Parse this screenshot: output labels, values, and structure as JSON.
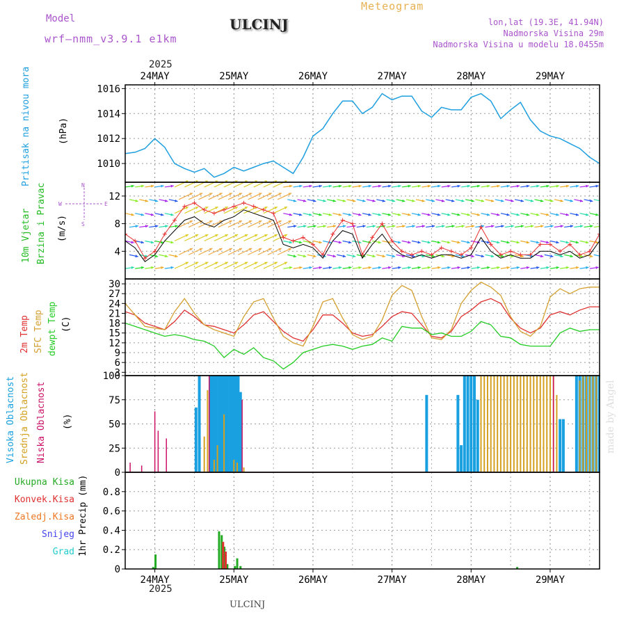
{
  "header": {
    "model_label": "Model",
    "model_name": "wrf—nmm_v3.9.1  e1km",
    "station": "ULCINJ",
    "meteogram": "Meteogram",
    "lonlat": "lon,lat (19.3E, 41.94N)",
    "elevation": "Nadmorska Visina 29m",
    "model_elevation": "Nadmorska Visina u modelu 18.0455m",
    "year": "2025",
    "footer_station": "ULCINJ",
    "credit": "made by Angel"
  },
  "colors": {
    "pressure": "#1e9fe0",
    "wind_label": "#22bb22",
    "wind_speed_line": "#000000",
    "wind_gust": "#e83030",
    "temp_2m": "#e03030",
    "sfc_temp": "#d4a030",
    "dewpt": "#22cc22",
    "cloud_high": "#18a0e0",
    "cloud_mid": "#d4a020",
    "cloud_low": "#cc1166",
    "precip_total": "#22aa22",
    "precip_conv": "#e03030",
    "precip_frz": "#ee7722",
    "snow": "#4444ee",
    "hail": "#22cccc",
    "title": "#222222",
    "purple": "#aa55cc",
    "orange": "#e8b050"
  },
  "days": [
    "24MAY",
    "25MAY",
    "26MAY",
    "27MAY",
    "28MAY",
    "29MAY"
  ],
  "axes_labels": {
    "pressure": [
      "Pritisak na nivou mora",
      "(hPa)"
    ],
    "wind": [
      "10m Vjetar",
      "Brzina i Pravac",
      "(m/s)"
    ],
    "wind_compass": {
      "n": "N",
      "s": "S",
      "w": "W",
      "e": "E"
    },
    "temp": [
      "2m Temp",
      "SFC Temp",
      "dewpt Temp",
      "(C)"
    ],
    "cloud": [
      "Visoka Oblacnost",
      "Srednja Oblacnost",
      "Niska Oblacnost",
      "(%)"
    ],
    "precip_legend": [
      "Ukupna Kisa",
      "Konvek.Kisa",
      "Zaledj.Kisa",
      "Snijeg",
      "Grad"
    ],
    "precip": "1hr Precip (mm)"
  },
  "chart_data": [
    {
      "type": "line",
      "name": "pressure",
      "ylabel": "Pritisak na nivou mora (hPa)",
      "ylim": [
        1008.5,
        1016.3
      ],
      "yticks": [
        1010,
        1012,
        1014,
        1016
      ],
      "x_hours": [
        0,
        3,
        6,
        9,
        12,
        15,
        18,
        21,
        24,
        27,
        30,
        33,
        36,
        39,
        42,
        45,
        48,
        51,
        54,
        57,
        60,
        63,
        66,
        69,
        72,
        75,
        78,
        81,
        84,
        87,
        90,
        93,
        96,
        99,
        102,
        105,
        108,
        111,
        114,
        117,
        120,
        123,
        126,
        129,
        132,
        135,
        138,
        141,
        144
      ],
      "values": [
        1010.8,
        1010.9,
        1011.2,
        1012.0,
        1011.3,
        1010.0,
        1009.6,
        1009.3,
        1009.6,
        1008.9,
        1009.2,
        1009.7,
        1009.4,
        1009.7,
        1010.0,
        1010.2,
        1009.7,
        1009.2,
        1010.5,
        1012.2,
        1012.8,
        1014.0,
        1015.0,
        1015.0,
        1014.0,
        1014.5,
        1015.6,
        1015.1,
        1015.4,
        1015.4,
        1014.2,
        1013.7,
        1014.5,
        1014.3,
        1014.3,
        1015.3,
        1015.6,
        1015.0,
        1013.6,
        1014.3,
        1014.9,
        1013.5,
        1012.6,
        1012.2,
        1012.0,
        1011.6,
        1011.2,
        1010.5,
        1010.0
      ]
    },
    {
      "type": "line",
      "name": "wind",
      "ylabel": "10m Vjetar Brzina i Pravac (m/s)",
      "ylim": [
        0,
        14
      ],
      "yticks": [
        4,
        8,
        12
      ],
      "x_hours": [
        0,
        3,
        6,
        9,
        12,
        15,
        18,
        21,
        24,
        27,
        30,
        33,
        36,
        39,
        42,
        45,
        48,
        51,
        54,
        57,
        60,
        63,
        66,
        69,
        72,
        75,
        78,
        81,
        84,
        87,
        90,
        93,
        96,
        99,
        102,
        105,
        108,
        111,
        114,
        117,
        120,
        123,
        126,
        129,
        132,
        135,
        138,
        141,
        144
      ],
      "speed": [
        5.5,
        4.5,
        2.5,
        3.5,
        5.5,
        7.0,
        8.5,
        9.0,
        8.0,
        7.5,
        8.5,
        9.0,
        10.0,
        9.5,
        9.0,
        8.5,
        5.0,
        4.5,
        5.0,
        4.5,
        3.0,
        5.5,
        7.0,
        6.5,
        3.0,
        5.0,
        6.5,
        4.5,
        3.5,
        3.0,
        3.5,
        3.0,
        3.5,
        3.5,
        3.0,
        3.5,
        6.0,
        4.0,
        3.0,
        3.5,
        3.0,
        3.0,
        4.0,
        4.0,
        3.5,
        4.0,
        3.0,
        3.5,
        5.5
      ],
      "gust": [
        6.5,
        5.5,
        3.0,
        4.0,
        6.5,
        8.5,
        10.5,
        11.0,
        10.0,
        9.5,
        10.0,
        10.5,
        11.0,
        10.5,
        10.0,
        9.5,
        6.0,
        5.5,
        6.0,
        5.0,
        3.5,
        6.5,
        8.5,
        8.0,
        3.5,
        6.0,
        8.0,
        5.5,
        4.0,
        3.5,
        4.0,
        3.5,
        4.5,
        4.0,
        3.5,
        4.5,
        7.5,
        5.0,
        3.5,
        4.0,
        3.5,
        3.5,
        5.0,
        5.0,
        4.0,
        5.0,
        3.5,
        4.0,
        6.5
      ]
    },
    {
      "type": "line",
      "name": "temperature",
      "ylabel": "(C)",
      "ylim": [
        2,
        31.5
      ],
      "yticks": [
        3,
        6,
        9,
        12,
        15,
        18,
        21,
        24,
        27,
        30
      ],
      "x_hours": [
        0,
        3,
        6,
        9,
        12,
        15,
        18,
        21,
        24,
        27,
        30,
        33,
        36,
        39,
        42,
        45,
        48,
        51,
        54,
        57,
        60,
        63,
        66,
        69,
        72,
        75,
        78,
        81,
        84,
        87,
        90,
        93,
        96,
        99,
        102,
        105,
        108,
        111,
        114,
        117,
        120,
        123,
        126,
        129,
        132,
        135,
        138,
        141,
        144
      ],
      "series": [
        {
          "name": "2m Temp",
          "values": [
            21.5,
            20.5,
            18.0,
            17.0,
            16.0,
            18.5,
            22.0,
            20.0,
            17.5,
            17.0,
            16.0,
            15.0,
            17.5,
            20.5,
            21.5,
            18.5,
            15.5,
            13.5,
            12.5,
            16.0,
            20.5,
            20.5,
            18.0,
            15.0,
            14.0,
            14.5,
            17.0,
            20.0,
            21.5,
            21.0,
            17.5,
            14.0,
            13.5,
            15.5,
            20.0,
            22.0,
            24.5,
            25.5,
            24.0,
            19.5,
            16.5,
            15.0,
            16.5,
            20.5,
            21.5,
            20.5,
            22.0,
            23.0,
            23.0
          ]
        },
        {
          "name": "SFC Temp",
          "values": [
            24.0,
            20.5,
            17.0,
            16.5,
            16.0,
            21.5,
            25.5,
            21.0,
            17.5,
            16.0,
            15.0,
            14.0,
            20.0,
            24.5,
            25.5,
            19.5,
            14.0,
            12.0,
            11.0,
            17.0,
            24.5,
            25.5,
            19.5,
            14.5,
            13.0,
            14.0,
            19.0,
            26.5,
            29.5,
            28.0,
            20.0,
            13.5,
            13.0,
            16.0,
            24.0,
            28.0,
            30.5,
            29.0,
            26.5,
            20.0,
            15.5,
            14.0,
            17.0,
            26.0,
            28.5,
            27.0,
            28.5,
            29.0,
            29.0
          ]
        },
        {
          "name": "dewpt Temp",
          "values": [
            18.0,
            17.0,
            16.0,
            15.0,
            14.0,
            14.5,
            14.0,
            13.0,
            12.5,
            11.0,
            7.5,
            10.0,
            8.5,
            10.5,
            7.5,
            6.5,
            4.0,
            6.0,
            9.0,
            10.0,
            11.0,
            11.5,
            11.0,
            10.0,
            11.0,
            11.5,
            13.5,
            12.5,
            17.0,
            16.5,
            16.5,
            14.5,
            15.0,
            14.0,
            14.0,
            15.5,
            18.5,
            17.5,
            14.0,
            13.5,
            11.5,
            11.0,
            11.0,
            11.0,
            15.0,
            16.5,
            15.5,
            16.0,
            16.0
          ]
        }
      ]
    },
    {
      "type": "bar",
      "name": "cloud",
      "ylabel": "(%)",
      "ylim": [
        0,
        100
      ],
      "yticks": [
        0,
        25,
        50,
        75,
        100
      ],
      "series": [
        {
          "name": "Visoka Oblacnost",
          "bars": [
            [
              21.5,
              67
            ],
            [
              22.5,
              100
            ],
            [
              26,
              100
            ],
            [
              26.8,
              100
            ],
            [
              27.5,
              100
            ],
            [
              28.3,
              100
            ],
            [
              29,
              100
            ],
            [
              29.7,
              100
            ],
            [
              30.5,
              100
            ],
            [
              31.2,
              100
            ],
            [
              32,
              100
            ],
            [
              32.8,
              100
            ],
            [
              33.5,
              100
            ],
            [
              34.3,
              100
            ],
            [
              35,
              83
            ],
            [
              91.5,
              80
            ],
            [
              101,
              80
            ],
            [
              102,
              28
            ],
            [
              103,
              100
            ],
            [
              104,
              100
            ],
            [
              105,
              100
            ],
            [
              106,
              100
            ],
            [
              107,
              75
            ],
            [
              132,
              55
            ],
            [
              133,
              55
            ],
            [
              137,
              100
            ],
            [
              138,
              100
            ],
            [
              139,
              100
            ],
            [
              140,
              100
            ],
            [
              141,
              100
            ],
            [
              142,
              100
            ],
            [
              143,
              100
            ],
            [
              144,
              100
            ]
          ]
        },
        {
          "name": "Srednja Oblacnost",
          "bars": [
            [
              24,
              37
            ],
            [
              25,
              85
            ],
            [
              27,
              13
            ],
            [
              28,
              28
            ],
            [
              30,
              60
            ],
            [
              33,
              13
            ],
            [
              34,
              10
            ],
            [
              36,
              5
            ],
            [
              108,
              100
            ],
            [
              109,
              100
            ],
            [
              110,
              100
            ],
            [
              111,
              100
            ],
            [
              112,
              100
            ],
            [
              113,
              100
            ],
            [
              114,
              100
            ],
            [
              115,
              100
            ],
            [
              116,
              100
            ],
            [
              117,
              100
            ],
            [
              118,
              100
            ],
            [
              119,
              100
            ],
            [
              120,
              100
            ],
            [
              121,
              100
            ],
            [
              122,
              100
            ],
            [
              123,
              100
            ],
            [
              124,
              100
            ],
            [
              125,
              100
            ],
            [
              126,
              100
            ],
            [
              127,
              100
            ],
            [
              128,
              100
            ],
            [
              129,
              100
            ],
            [
              130,
              100
            ],
            [
              131,
              80
            ],
            [
              138,
              95
            ],
            [
              139,
              100
            ],
            [
              140,
              100
            ],
            [
              141,
              100
            ],
            [
              142,
              100
            ],
            [
              143,
              100
            ]
          ]
        },
        {
          "name": "Niska Oblacnost",
          "bars": [
            [
              1.5,
              10
            ],
            [
              5,
              7
            ],
            [
              9,
              63
            ],
            [
              10,
              43
            ],
            [
              12.5,
              35
            ],
            [
              25.5,
              100
            ],
            [
              35.5,
              75
            ],
            [
              130,
              100
            ]
          ]
        }
      ]
    },
    {
      "type": "bar",
      "name": "precipitation",
      "ylabel": "1hr Precip (mm)",
      "ylim": [
        0,
        1
      ],
      "yticks": [
        0,
        0.2,
        0.4,
        0.6,
        0.8
      ],
      "series": [
        {
          "name": "Ukupna Kisa",
          "bars": [
            [
              8.5,
              0.02
            ],
            [
              9.2,
              0.15
            ],
            [
              28.5,
              0.39
            ],
            [
              29.3,
              0.35
            ],
            [
              30.1,
              0.23
            ],
            [
              31,
              0.05
            ],
            [
              33.3,
              0.03
            ],
            [
              34,
              0.11
            ],
            [
              35,
              0.03
            ],
            [
              119,
              0.02
            ]
          ]
        },
        {
          "name": "Konvek.Kisa",
          "bars": [
            [
              29.3,
              0.28
            ],
            [
              30.1,
              0.18
            ]
          ]
        }
      ]
    }
  ]
}
